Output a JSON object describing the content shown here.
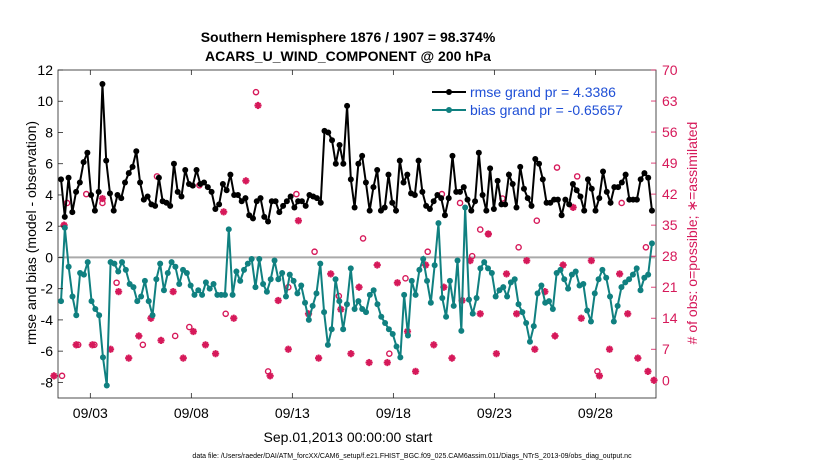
{
  "colors": {
    "rmse": "#000000",
    "bias": "#108080",
    "obs": "#d6195a",
    "legend_text": "#1f4fd6",
    "zero_line": "#aaaaaa",
    "right_axis": "#d6195a"
  },
  "chart_data": {
    "type": "line",
    "title_line1": "Southern Hemisphere 1876 / 1907 = 98.374%",
    "title_line2": "ACARS_U_WIND_COMPONENT @ 200 hPa",
    "xlabel": "Sep.01,2013 00:00:00 start",
    "ylabel_left": "rmse and bias (model - observation)",
    "ylabel_right": "# of obs: o=possible; ∗=assimilated",
    "footnote": "data file: /Users/raeder/DAI/ATM_forcXX/CAM6_setup/f.e21.FHIST_BGC.f09_025.CAM6assim.011/Diags_NTrS_2013-09/obs_diag_output.nc",
    "xlim": [
      1.4,
      31.0
    ],
    "ylim_left": [
      -9,
      12
    ],
    "ylim_right": [
      -4,
      70
    ],
    "left_ticks": [
      12,
      10,
      8,
      6,
      4,
      2,
      0,
      -2,
      -4,
      -6,
      -8
    ],
    "right_ticks": [
      70,
      63,
      56,
      49,
      42,
      35,
      28,
      21,
      14,
      7,
      0
    ],
    "x_ticks": [
      {
        "label": "09/03",
        "x": 3
      },
      {
        "label": "09/08",
        "x": 8
      },
      {
        "label": "09/13",
        "x": 13
      },
      {
        "label": "09/18",
        "x": 18
      },
      {
        "label": "09/23",
        "x": 23
      },
      {
        "label": "09/28",
        "x": 28
      }
    ],
    "legend": [
      {
        "key": "rmse",
        "label": "rmse grand pr = 4.3386"
      },
      {
        "key": "bias",
        "label": "bias grand pr = -0.65657"
      }
    ],
    "zero_line": 0,
    "series": {
      "rmse": [
        5.0,
        2.6,
        5.1,
        2.9,
        4.2,
        4.8,
        6.1,
        6.7,
        4.0,
        3.0,
        4.2,
        11.1,
        6.2,
        4.1,
        3.0,
        4.0,
        3.8,
        4.8,
        5.4,
        5.8,
        6.8,
        4.8,
        3.7,
        3.9,
        3.4,
        3.3,
        5.1,
        3.6,
        3.5,
        3.3,
        6.0,
        4.2,
        3.9,
        5.6,
        4.7,
        4.6,
        5.6,
        4.7,
        4.8,
        4.5,
        4.2,
        3.1,
        3.4,
        4.7,
        4.3,
        5.3,
        4.0,
        4.0,
        3.6,
        3.8,
        2.7,
        2.5,
        3.6,
        3.8,
        2.6,
        2.3,
        3.6,
        3.6,
        2.9,
        3.3,
        3.6,
        3.9,
        3.2,
        3.6,
        3.6,
        3.3,
        4.0,
        3.9,
        3.8,
        3.5,
        8.1,
        8.0,
        7.5,
        6.0,
        7.2,
        6.0,
        9.7,
        5.0,
        3.2,
        6.0,
        6.5,
        4.8,
        3.0,
        4.5,
        5.6,
        3.0,
        3.2,
        5.3,
        3.5,
        3.0,
        6.2,
        4.8,
        5.3,
        4.1,
        4.0,
        6.2,
        4.2,
        3.3,
        3.1,
        3.6,
        4.0,
        3.8,
        2.7,
        3.8,
        6.5,
        4.2,
        4.2,
        4.5,
        3.7,
        3.0,
        3.6,
        6.7,
        4.0,
        3.0,
        5.7,
        3.1,
        4.9,
        3.4,
        3.4,
        5.3,
        4.7,
        3.2,
        5.8,
        4.4,
        3.8,
        3.3,
        6.3,
        6.0,
        5.0,
        3.5,
        3.5,
        3.7,
        3.7,
        2.7,
        3.7,
        3.4,
        4.7,
        4.3,
        3.9,
        3.0,
        5.0,
        4.4,
        3.0,
        3.8,
        5.5,
        4.2,
        3.5,
        4.5,
        4.5,
        4.8,
        5.3,
        3.7,
        3.7,
        3.7,
        5.0,
        5.4,
        5.1,
        3.0
      ],
      "bias": [
        -2.8,
        1.9,
        -0.6,
        -2.5,
        -3.7,
        -1.0,
        -1.1,
        -0.3,
        -2.8,
        -3.3,
        -3.7,
        -6.4,
        -8.2,
        -0.3,
        -0.4,
        -0.9,
        -0.3,
        -0.8,
        -1.7,
        -1.9,
        -2.8,
        -2.5,
        -1.5,
        -2.8,
        -3.7,
        -1.4,
        -0.4,
        -2.1,
        -1.0,
        -0.3,
        -0.6,
        -1.7,
        -0.8,
        -1.0,
        -1.8,
        -2.4,
        -2.1,
        -2.4,
        -1.6,
        -2.0,
        -1.7,
        -2.4,
        -2.4,
        -2.4,
        1.8,
        -2.4,
        -0.9,
        -1.5,
        -0.8,
        -0.4,
        -0.1,
        -1.9,
        -0.1,
        -1.7,
        -2.2,
        -1.4,
        -0.2,
        -1.4,
        -1.0,
        -2.5,
        -1.1,
        -1.5,
        -2.3,
        -1.8,
        -2.9,
        -4.0,
        -3.1,
        -2.3,
        -0.4,
        -3.5,
        -5.6,
        -4.6,
        -1.4,
        -2.8,
        -4.6,
        -3.0,
        -0.7,
        -3.3,
        -2.8,
        -3.3,
        -3.5,
        -2.4,
        -2.1,
        -3.0,
        -3.8,
        -4.2,
        -4.6,
        -4.9,
        -5.7,
        -6.4,
        -2.4,
        -5.0,
        -1.5,
        -2.4,
        -0.8,
        -0.1,
        -1.5,
        -2.9,
        -0.5,
        2.2,
        -2.6,
        -3.8,
        -1.5,
        -3.1,
        -0.2,
        -4.7,
        3.2,
        -2.7,
        -3.6,
        -2.6,
        -0.7,
        -0.3,
        -0.7,
        -1.0,
        -2.5,
        -2.1,
        -1.9,
        -2.5,
        -1.6,
        -1.4,
        -3.0,
        -3.5,
        -4.2,
        -5.4,
        -4.4,
        -2.3,
        -1.8,
        -2.9,
        -2.8,
        -3.3,
        -1.0,
        -0.8,
        -1.4,
        -2.0,
        -1.1,
        -0.9,
        -1.8,
        -1.7,
        -3.4,
        -4.1,
        -2.3,
        -1.4,
        -0.8,
        -1.3,
        -2.5,
        -4.1,
        -3.1,
        -1.9,
        -1.6,
        -1.4,
        -1.1,
        -0.7,
        -2.1,
        -1.3,
        -1.1,
        0.9
      ],
      "obs_possible": [
        [
          1.6,
          1
        ],
        [
          1.85,
          40
        ],
        [
          2.4,
          8
        ],
        [
          2.8,
          42
        ],
        [
          3.2,
          8
        ],
        [
          3.6,
          40
        ],
        [
          4.3,
          22
        ],
        [
          5.6,
          8
        ],
        [
          6.3,
          46
        ],
        [
          7.2,
          10
        ],
        [
          7.9,
          12
        ],
        [
          8.4,
          44
        ],
        [
          9.7,
          15
        ],
        [
          11.2,
          65
        ],
        [
          11.8,
          2
        ],
        [
          12.8,
          21
        ],
        [
          13.2,
          42
        ],
        [
          14.1,
          29
        ],
        [
          15.3,
          19
        ],
        [
          16.5,
          32
        ],
        [
          17.8,
          6
        ],
        [
          18.6,
          23
        ],
        [
          19.7,
          29
        ],
        [
          20.4,
          42
        ],
        [
          21.3,
          40
        ],
        [
          21.9,
          28
        ],
        [
          22.3,
          34
        ],
        [
          22.7,
          33
        ],
        [
          23.4,
          41
        ],
        [
          24.2,
          30
        ],
        [
          25.1,
          36
        ],
        [
          26.1,
          48
        ],
        [
          27.1,
          46
        ],
        [
          28.1,
          2
        ],
        [
          29.3,
          40
        ],
        [
          30.5,
          30
        ]
      ],
      "obs_assimilated": [
        [
          1.2,
          1
        ],
        [
          1.7,
          35
        ],
        [
          2.3,
          8
        ],
        [
          3.1,
          8
        ],
        [
          3.6,
          41
        ],
        [
          4.0,
          7
        ],
        [
          4.4,
          20
        ],
        [
          4.9,
          5
        ],
        [
          5.4,
          10
        ],
        [
          6.0,
          14
        ],
        [
          6.5,
          9
        ],
        [
          7.1,
          20
        ],
        [
          7.6,
          5
        ],
        [
          8.1,
          11
        ],
        [
          8.7,
          8
        ],
        [
          9.2,
          6
        ],
        [
          9.6,
          38
        ],
        [
          10.1,
          14
        ],
        [
          10.7,
          45
        ],
        [
          11.3,
          62
        ],
        [
          11.9,
          1
        ],
        [
          12.3,
          18
        ],
        [
          12.8,
          7
        ],
        [
          13.3,
          36
        ],
        [
          13.8,
          15
        ],
        [
          14.3,
          5
        ],
        [
          14.9,
          24
        ],
        [
          15.4,
          16
        ],
        [
          15.9,
          6
        ],
        [
          16.3,
          21
        ],
        [
          16.8,
          4
        ],
        [
          17.2,
          26
        ],
        [
          17.7,
          4
        ],
        [
          18.2,
          22
        ],
        [
          18.7,
          11
        ],
        [
          19.1,
          2
        ],
        [
          19.6,
          26
        ],
        [
          20.0,
          8
        ],
        [
          20.5,
          21
        ],
        [
          20.9,
          5
        ],
        [
          21.4,
          18
        ],
        [
          21.8,
          27
        ],
        [
          22.3,
          15
        ],
        [
          22.7,
          33
        ],
        [
          23.1,
          6
        ],
        [
          23.6,
          24
        ],
        [
          24.1,
          15
        ],
        [
          24.6,
          27
        ],
        [
          25.0,
          7
        ],
        [
          25.5,
          20
        ],
        [
          26.0,
          10
        ],
        [
          26.4,
          26
        ],
        [
          26.9,
          39
        ],
        [
          27.3,
          14
        ],
        [
          27.8,
          27
        ],
        [
          28.2,
          1
        ],
        [
          28.7,
          7
        ],
        [
          29.2,
          24
        ],
        [
          29.6,
          15
        ],
        [
          30.1,
          5
        ],
        [
          30.6,
          2
        ],
        [
          30.9,
          0
        ]
      ]
    }
  }
}
